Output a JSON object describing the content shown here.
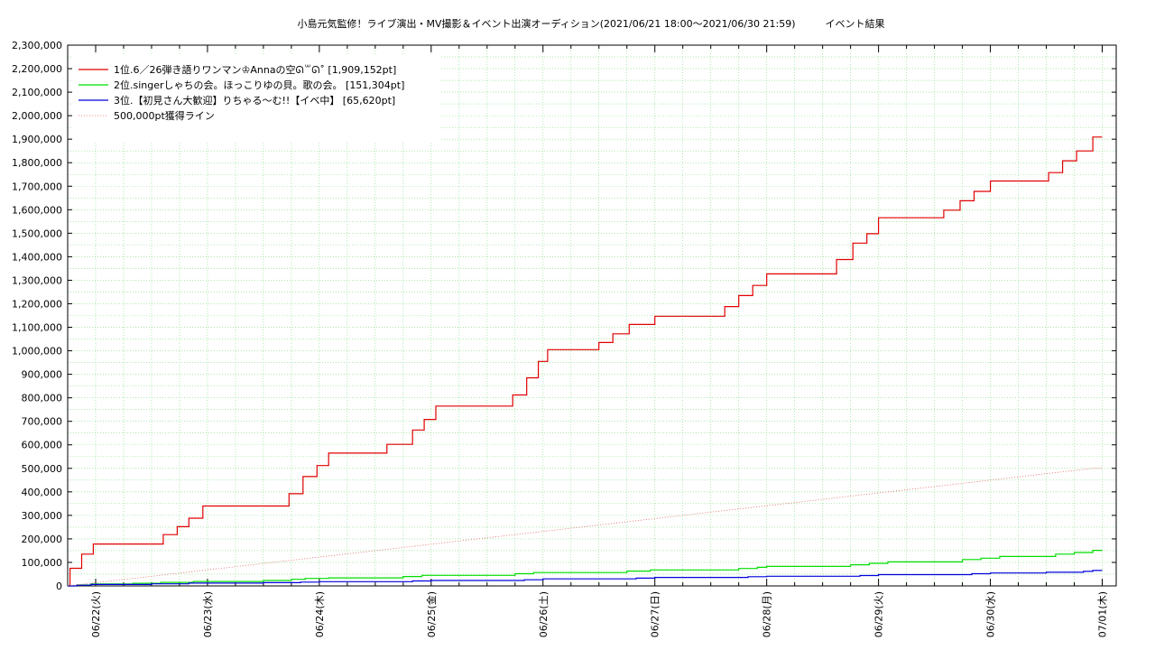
{
  "chart_data": {
    "type": "line",
    "title": "小島元気監修！ライブ演出・MV撮影＆イベント出演オーディション(2021/06/21 18:00〜2021/06/30 21:59)　　　イベント結果",
    "xlabel": "",
    "ylabel": "",
    "ylim": [
      0,
      2300000
    ],
    "y_ticks": [
      "0",
      "100,000",
      "200,000",
      "300,000",
      "400,000",
      "500,000",
      "600,000",
      "700,000",
      "800,000",
      "900,000",
      "1,000,000",
      "1,100,000",
      "1,200,000",
      "1,300,000",
      "1,400,000",
      "1,500,000",
      "1,600,000",
      "1,700,000",
      "1,800,000",
      "1,900,000",
      "2,000,000",
      "2,100,000",
      "2,200,000",
      "2,300,000"
    ],
    "x_range_days": [
      "2021-06-21 18:00",
      "2021-07-01 03:00"
    ],
    "x_ticks": [
      {
        "date": "2021-06-22",
        "label": "06/22(火)"
      },
      {
        "date": "2021-06-23",
        "label": "06/23(水)"
      },
      {
        "date": "2021-06-24",
        "label": "06/24(木)"
      },
      {
        "date": "2021-06-25",
        "label": "06/25(金)"
      },
      {
        "date": "2021-06-26",
        "label": "06/26(土)"
      },
      {
        "date": "2021-06-27",
        "label": "06/27(日)"
      },
      {
        "date": "2021-06-28",
        "label": "06/28(月)"
      },
      {
        "date": "2021-06-29",
        "label": "06/29(火)"
      },
      {
        "date": "2021-06-30",
        "label": "06/30(水)"
      },
      {
        "date": "2021-07-01",
        "label": "07/01(木)"
      }
    ],
    "grid": true,
    "legend_position": "top-left",
    "series": [
      {
        "name": "1位.6／26弾き語りワンマン♔Annaの空ᘏ꒳ᘏ˚ [1,909,152pt]",
        "color": "#e00000",
        "style": "step",
        "points": [
          [
            "2021-06-21 18:00",
            0
          ],
          [
            "2021-06-21 18:30",
            75000
          ],
          [
            "2021-06-21 21:00",
            135000
          ],
          [
            "2021-06-21 23:30",
            178000
          ],
          [
            "2021-06-22 14:30",
            218000
          ],
          [
            "2021-06-22 17:30",
            252000
          ],
          [
            "2021-06-22 20:00",
            288000
          ],
          [
            "2021-06-22 23:00",
            340000
          ],
          [
            "2021-06-23 17:30",
            392000
          ],
          [
            "2021-06-23 20:30",
            465000
          ],
          [
            "2021-06-23 23:30",
            512000
          ],
          [
            "2021-06-24 02:00",
            565000
          ],
          [
            "2021-06-24 14:30",
            602000
          ],
          [
            "2021-06-24 20:00",
            663000
          ],
          [
            "2021-06-24 22:30",
            708000
          ],
          [
            "2021-06-25 01:00",
            765000
          ],
          [
            "2021-06-25 17:30",
            812000
          ],
          [
            "2021-06-25 20:30",
            885000
          ],
          [
            "2021-06-25 23:00",
            955000
          ],
          [
            "2021-06-26 01:00",
            1005000
          ],
          [
            "2021-06-26 12:00",
            1035000
          ],
          [
            "2021-06-26 15:00",
            1072000
          ],
          [
            "2021-06-26 18:30",
            1112000
          ],
          [
            "2021-06-27 00:00",
            1147000
          ],
          [
            "2021-06-27 15:00",
            1188000
          ],
          [
            "2021-06-27 18:00",
            1235000
          ],
          [
            "2021-06-27 21:00",
            1278000
          ],
          [
            "2021-06-28 00:00",
            1327000
          ],
          [
            "2021-06-28 15:00",
            1388000
          ],
          [
            "2021-06-28 18:30",
            1458000
          ],
          [
            "2021-06-28 21:30",
            1498000
          ],
          [
            "2021-06-29 00:00",
            1566000
          ],
          [
            "2021-06-29 14:00",
            1598000
          ],
          [
            "2021-06-29 17:30",
            1638000
          ],
          [
            "2021-06-29 20:30",
            1678000
          ],
          [
            "2021-06-30 00:00",
            1722000
          ],
          [
            "2021-06-30 12:30",
            1758000
          ],
          [
            "2021-06-30 15:30",
            1808000
          ],
          [
            "2021-06-30 18:30",
            1850000
          ],
          [
            "2021-06-30 21:59",
            1909152
          ],
          [
            "2021-07-01 00:00",
            1909152
          ]
        ]
      },
      {
        "name": "2位.singerしゃちの会。ほっこりゆの貝。歌の会。 [151,304pt]",
        "color": "#00dd00",
        "style": "step",
        "points": [
          [
            "2021-06-21 18:00",
            0
          ],
          [
            "2021-06-21 20:00",
            4000
          ],
          [
            "2021-06-21 23:00",
            8000
          ],
          [
            "2021-06-22 08:00",
            11000
          ],
          [
            "2021-06-22 14:00",
            15000
          ],
          [
            "2021-06-22 21:00",
            19000
          ],
          [
            "2021-06-23 12:00",
            23000
          ],
          [
            "2021-06-23 18:00",
            28000
          ],
          [
            "2021-06-23 21:00",
            32000
          ],
          [
            "2021-06-24 02:00",
            34000
          ],
          [
            "2021-06-24 18:00",
            40000
          ],
          [
            "2021-06-24 22:00",
            45000
          ],
          [
            "2021-06-25 18:00",
            52000
          ],
          [
            "2021-06-25 22:00",
            57000
          ],
          [
            "2021-06-26 18:00",
            63000
          ],
          [
            "2021-06-26 23:00",
            68000
          ],
          [
            "2021-06-27 18:00",
            74000
          ],
          [
            "2021-06-27 22:00",
            79000
          ],
          [
            "2021-06-28 00:00",
            83000
          ],
          [
            "2021-06-28 18:00",
            90000
          ],
          [
            "2021-06-28 22:00",
            96000
          ],
          [
            "2021-06-29 02:00",
            102000
          ],
          [
            "2021-06-29 18:00",
            112000
          ],
          [
            "2021-06-29 22:00",
            118000
          ],
          [
            "2021-06-30 02:00",
            125000
          ],
          [
            "2021-06-30 14:00",
            135000
          ],
          [
            "2021-06-30 18:00",
            142000
          ],
          [
            "2021-06-30 21:59",
            151304
          ],
          [
            "2021-07-01 00:00",
            151304
          ]
        ]
      },
      {
        "name": "3位.【初見さん大歓迎】りちゃる〜む!!【イベ中】 [65,620pt]",
        "color": "#0000dd",
        "style": "step",
        "points": [
          [
            "2021-06-21 18:00",
            0
          ],
          [
            "2021-06-21 20:00",
            3000
          ],
          [
            "2021-06-21 23:00",
            6000
          ],
          [
            "2021-06-22 12:00",
            9000
          ],
          [
            "2021-06-22 20:00",
            12000
          ],
          [
            "2021-06-23 12:00",
            14000
          ],
          [
            "2021-06-23 20:00",
            16000
          ],
          [
            "2021-06-24 00:00",
            18000
          ],
          [
            "2021-06-24 20:00",
            21000
          ],
          [
            "2021-06-25 00:00",
            23000
          ],
          [
            "2021-06-25 20:00",
            26000
          ],
          [
            "2021-06-26 00:00",
            30000
          ],
          [
            "2021-06-26 20:00",
            33000
          ],
          [
            "2021-06-27 00:00",
            36000
          ],
          [
            "2021-06-27 20:00",
            39000
          ],
          [
            "2021-06-28 00:00",
            41000
          ],
          [
            "2021-06-28 20:00",
            44000
          ],
          [
            "2021-06-29 00:00",
            48000
          ],
          [
            "2021-06-29 20:00",
            52000
          ],
          [
            "2021-06-30 00:00",
            55000
          ],
          [
            "2021-06-30 12:00",
            58000
          ],
          [
            "2021-06-30 20:00",
            62000
          ],
          [
            "2021-06-30 21:59",
            65620
          ],
          [
            "2021-07-01 00:00",
            65620
          ]
        ]
      },
      {
        "name": "500,000pt獲得ライン",
        "color": "#e06060",
        "style": "dotted",
        "points": [
          [
            "2021-06-21 18:00",
            0
          ],
          [
            "2021-06-30 21:59",
            500000
          ],
          [
            "2021-07-01 00:00",
            500000
          ]
        ]
      }
    ]
  }
}
